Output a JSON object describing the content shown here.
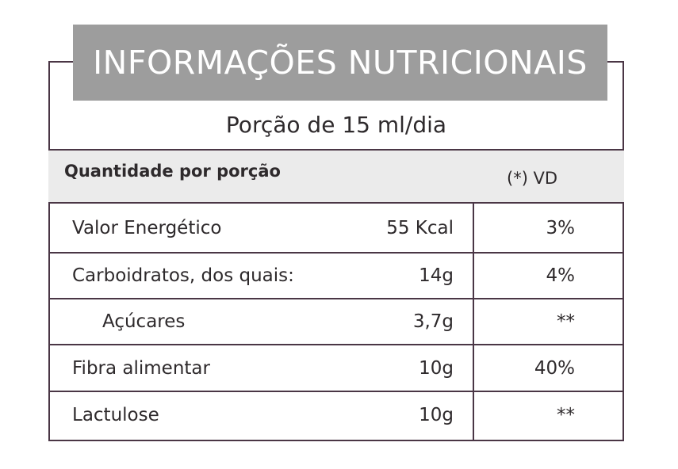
{
  "title": "INFORMAÇÕES NUTRICIONAIS",
  "portion": "Porção de 15 ml/dia",
  "header": {
    "quantity_label": "Quantidade por porção",
    "vd_label": "(*) VD"
  },
  "rows": [
    {
      "name": "Valor Energético",
      "amount": "55 Kcal",
      "vd": "3%"
    },
    {
      "name": "Carboidratos, dos quais:",
      "amount": "14g",
      "vd": "4%"
    },
    {
      "name": "Açúcares",
      "amount": "3,7g",
      "vd": "**"
    },
    {
      "name": "Fibra alimentar",
      "amount": "10g",
      "vd": "40%"
    },
    {
      "name": "Lactulose",
      "amount": "10g",
      "vd": "**"
    }
  ],
  "colors": {
    "title_background": "#9d9d9d",
    "border": "#4a3645",
    "header_background": "#ebebeb",
    "text": "#2e2a2c"
  }
}
